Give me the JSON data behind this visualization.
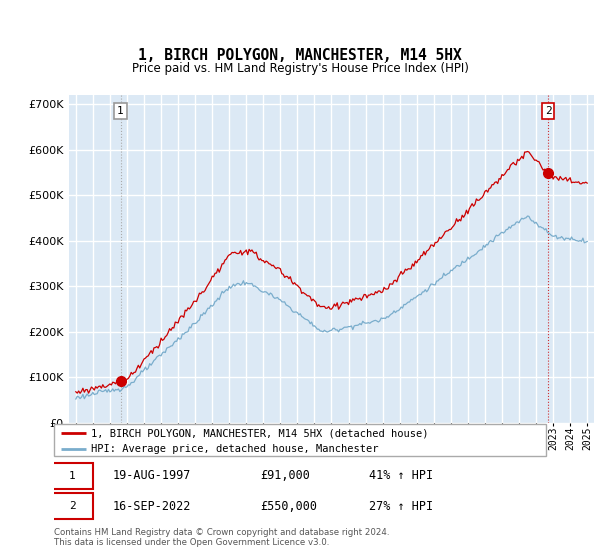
{
  "title": "1, BIRCH POLYGON, MANCHESTER, M14 5HX",
  "subtitle": "Price paid vs. HM Land Registry's House Price Index (HPI)",
  "ylim": [
    0,
    700000
  ],
  "yticks": [
    0,
    100000,
    200000,
    300000,
    400000,
    500000,
    600000,
    700000
  ],
  "red_color": "#cc0000",
  "blue_color": "#7aadcc",
  "vline_color1": "#888888",
  "vline_color2": "#cc0000",
  "bg_color": "#dce9f5",
  "grid_color": "#ffffff",
  "legend_label_red": "1, BIRCH POLYGON, MANCHESTER, M14 5HX (detached house)",
  "legend_label_blue": "HPI: Average price, detached house, Manchester",
  "transaction1_date": "19-AUG-1997",
  "transaction1_price": "£91,000",
  "transaction1_hpi": "41% ↑ HPI",
  "transaction2_date": "16-SEP-2022",
  "transaction2_price": "£550,000",
  "transaction2_hpi": "27% ↑ HPI",
  "footer": "Contains HM Land Registry data © Crown copyright and database right 2024.\nThis data is licensed under the Open Government Licence v3.0.",
  "sale1_year": 1997.625,
  "sale1_price": 91000,
  "sale2_year": 2022.708,
  "sale2_price": 550000
}
